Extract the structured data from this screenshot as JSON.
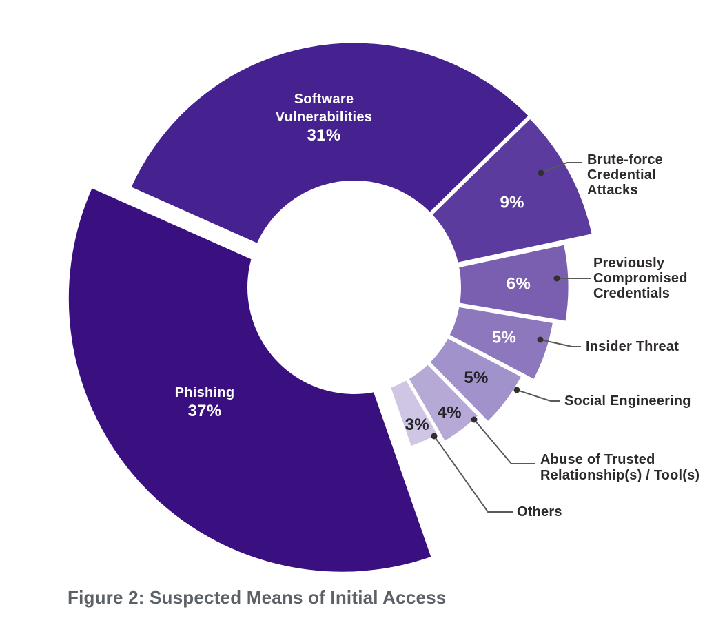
{
  "figure": {
    "caption": "Figure 2: Suspected Means of Initial Access"
  },
  "chart_data": {
    "type": "pie",
    "subtype": "exploded-donut",
    "title": "Figure 2: Suspected Means of Initial Access",
    "unit": "%",
    "categories": [
      "Phishing",
      "Software Vulnerabilities",
      "Brute-force Credential Attacks",
      "Previously Compromised Credentials",
      "Insider Threat",
      "Social Engineering",
      "Abuse of Trusted Relationship(s) / Tool(s)",
      "Others"
    ],
    "values": [
      37,
      31,
      9,
      6,
      5,
      5,
      4,
      3
    ],
    "legend_position": "none",
    "label_style": "large slices labeled inside, small slices percentage inside with external callout labels on right",
    "rotation_start_deg_clockwise_from_12": -66,
    "colors": [
      "#3A1081",
      "#452290",
      "#5B3B9E",
      "#7A5FB0",
      "#8D78BE",
      "#A292CB",
      "#B6A9D6",
      "#CFC6E4"
    ]
  },
  "slices": [
    {
      "id": "software-vulnerabilities",
      "label": "Software Vulnerabilities",
      "value": 31,
      "pct_text": "31%",
      "color": "#452290",
      "pct_color": "#ffffff",
      "inside_lines": [
        "Software",
        "Vulnerabilities"
      ],
      "callout_lines": null
    },
    {
      "id": "brute-force-credential-attacks",
      "label": "Brute-force Credential Attacks",
      "value": 9,
      "pct_text": "9%",
      "color": "#5B3B9E",
      "pct_color": "#ffffff",
      "inside_lines": null,
      "callout_lines": [
        "Brute-force",
        "Credential",
        "Attacks"
      ]
    },
    {
      "id": "previously-compromised-credentials",
      "label": "Previously Compromised Credentials",
      "value": 6,
      "pct_text": "6%",
      "color": "#7A5FB0",
      "pct_color": "#ffffff",
      "inside_lines": null,
      "callout_lines": [
        "Previously",
        "Compromised",
        "Credentials"
      ]
    },
    {
      "id": "insider-threat",
      "label": "Insider Threat",
      "value": 5,
      "pct_text": "5%",
      "color": "#8D78BE",
      "pct_color": "#ffffff",
      "inside_lines": null,
      "callout_lines": [
        "Insider Threat"
      ]
    },
    {
      "id": "social-engineering",
      "label": "Social Engineering",
      "value": 5,
      "pct_text": "5%",
      "color": "#A292CB",
      "pct_color": "#26222a",
      "inside_lines": null,
      "callout_lines": [
        "Social Engineering"
      ]
    },
    {
      "id": "abuse-of-trusted-relationships-tools",
      "label": "Abuse of Trusted Relationship(s) / Tool(s)",
      "value": 4,
      "pct_text": "4%",
      "color": "#B6A9D6",
      "pct_color": "#26222a",
      "inside_lines": null,
      "callout_lines": [
        "Abuse of Trusted",
        "Relationship(s) / Tool(s)"
      ]
    },
    {
      "id": "others",
      "label": "Others",
      "value": 3,
      "pct_text": "3%",
      "color": "#CFC6E4",
      "pct_color": "#26222a",
      "inside_lines": null,
      "callout_lines": [
        "Others"
      ]
    },
    {
      "id": "phishing",
      "label": "Phishing",
      "value": 37,
      "pct_text": "37%",
      "color": "#3A1081",
      "pct_color": "#ffffff",
      "inside_lines": [
        "Phishing"
      ],
      "callout_lines": null
    }
  ],
  "style": {
    "leader_line_color": "#58595b",
    "leader_dot_color": "#322e30",
    "callout_text_color": "#2e2a2b",
    "slice_gap_color": "#ffffff",
    "background": "#ffffff"
  }
}
